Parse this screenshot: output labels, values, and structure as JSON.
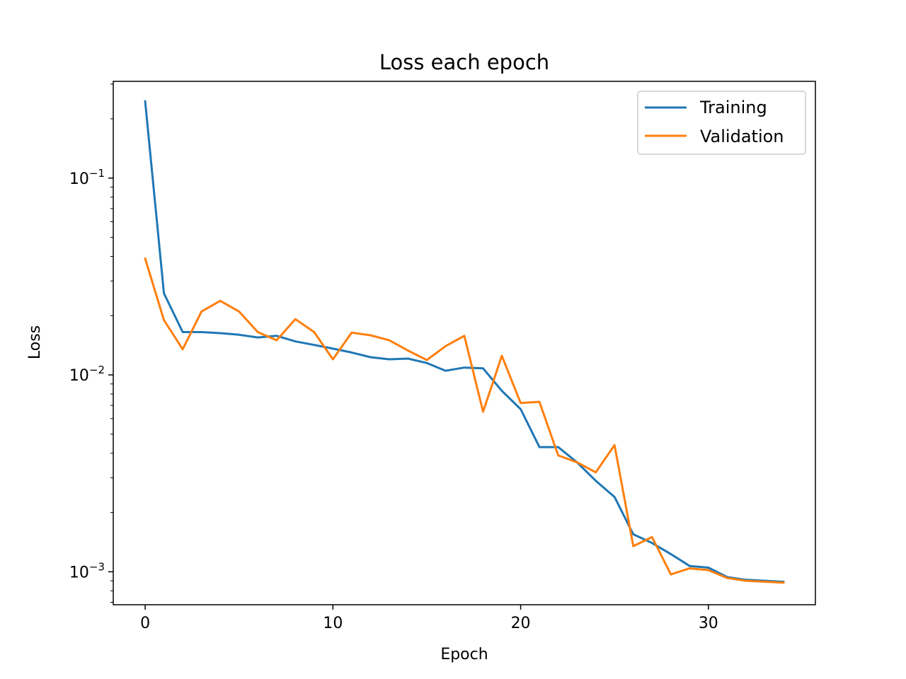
{
  "chart_data": {
    "type": "line",
    "title": "Loss each epoch",
    "xlabel": "Epoch",
    "ylabel": "Loss",
    "yscale": "log",
    "xlim": [
      -1.7,
      35.7
    ],
    "ylim": [
      0.00068,
      0.31
    ],
    "x_ticks": [
      0,
      10,
      20,
      30
    ],
    "y_ticks": [
      {
        "value": 0.1,
        "base": "10",
        "exp": "−1"
      },
      {
        "value": 0.01,
        "base": "10",
        "exp": "−2"
      },
      {
        "value": 0.001,
        "base": "10",
        "exp": "−3"
      }
    ],
    "grid": false,
    "legend": "upper right",
    "x": [
      0,
      1,
      2,
      3,
      4,
      5,
      6,
      7,
      8,
      9,
      10,
      11,
      12,
      13,
      14,
      15,
      16,
      17,
      18,
      19,
      20,
      21,
      22,
      23,
      24,
      25,
      26,
      27,
      28,
      29,
      30,
      31,
      32,
      33,
      34
    ],
    "series": [
      {
        "name": "Training",
        "color": "#1f77b4",
        "values": [
          0.245,
          0.026,
          0.0165,
          0.0165,
          0.0163,
          0.016,
          0.0155,
          0.0158,
          0.0148,
          0.0142,
          0.0136,
          0.013,
          0.0123,
          0.012,
          0.0121,
          0.0115,
          0.0105,
          0.0109,
          0.0108,
          0.0083,
          0.0067,
          0.0043,
          0.0043,
          0.0036,
          0.0029,
          0.0024,
          0.00155,
          0.0014,
          0.00123,
          0.00107,
          0.00105,
          0.00094,
          0.00091,
          0.0009,
          0.00089
        ]
      },
      {
        "name": "Validation",
        "color": "#ff7f0e",
        "values": [
          0.039,
          0.019,
          0.0135,
          0.021,
          0.0238,
          0.021,
          0.0165,
          0.015,
          0.0192,
          0.0165,
          0.012,
          0.0164,
          0.0159,
          0.015,
          0.0133,
          0.0119,
          0.014,
          0.0158,
          0.0065,
          0.0125,
          0.0072,
          0.0073,
          0.0039,
          0.0036,
          0.0032,
          0.0044,
          0.00135,
          0.0015,
          0.00097,
          0.00104,
          0.00102,
          0.00093,
          0.0009,
          0.00089,
          0.00088
        ]
      }
    ]
  }
}
